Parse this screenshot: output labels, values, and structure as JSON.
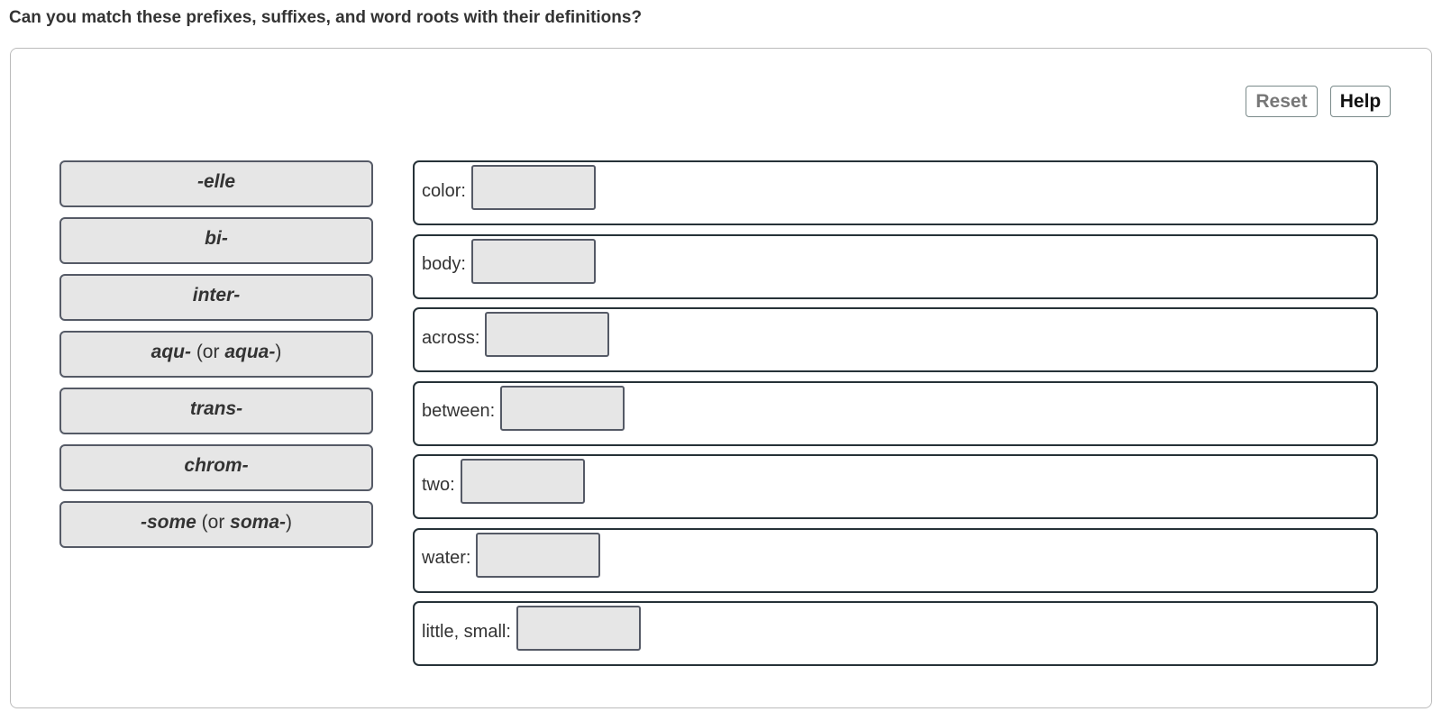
{
  "question": "Can you match these prefixes, suffixes, and word roots with their definitions?",
  "buttons": {
    "reset": "Reset",
    "help": "Help"
  },
  "tiles": [
    {
      "main": "-elle",
      "extra": "",
      "alt": "",
      "close": ""
    },
    {
      "main": "bi-",
      "extra": "",
      "alt": "",
      "close": ""
    },
    {
      "main": "inter-",
      "extra": "",
      "alt": "",
      "close": ""
    },
    {
      "main": "aqu-",
      "extra": " (or ",
      "alt": "aqua-",
      "close": ")"
    },
    {
      "main": "trans-",
      "extra": "",
      "alt": "",
      "close": ""
    },
    {
      "main": "chrom-",
      "extra": "",
      "alt": "",
      "close": ""
    },
    {
      "main": "-some",
      "extra": " (or ",
      "alt": "soma-",
      "close": ")"
    }
  ],
  "targets": [
    {
      "label": "color:",
      "value": ""
    },
    {
      "label": "body:",
      "value": ""
    },
    {
      "label": "across:",
      "value": ""
    },
    {
      "label": "between:",
      "value": ""
    },
    {
      "label": "two:",
      "value": ""
    },
    {
      "label": "water:",
      "value": ""
    },
    {
      "label": "little, small:",
      "value": ""
    }
  ]
}
